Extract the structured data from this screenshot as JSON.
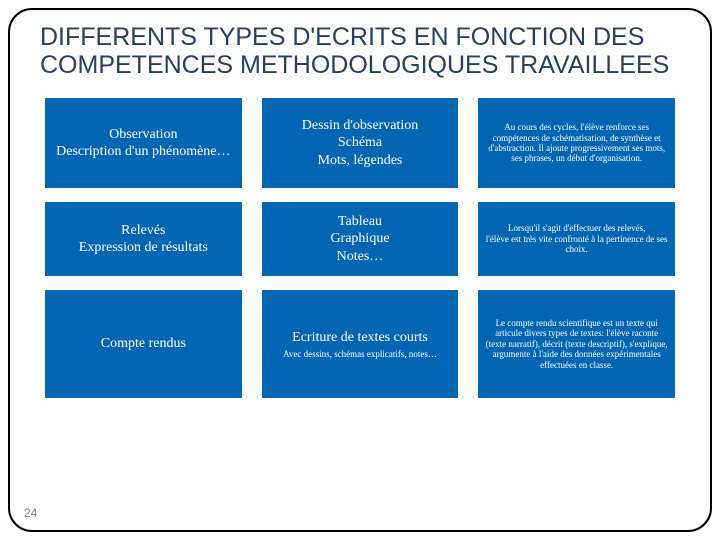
{
  "title": "DIFFERENTS TYPES D'ECRITS EN FONCTION DES COMPETENCES METHODOLOGIQUES TRAVAILLEES",
  "pageNumber": "24",
  "colors": {
    "cellBg": "#0066b3",
    "cellBorder": "#ffffff",
    "cellText": "#ffffff",
    "titleColor": "#254061",
    "borderColor": "#000000"
  },
  "grid": {
    "r1c1": "Observation\nDescription d'un phénomène…",
    "r1c2": "Dessin d'observation\nSchéma\nMots, légendes",
    "r1c3": "Au cours des cycles, l'élève renforce ses compétences de schématisation, de synthèse et d'abstraction. Il ajoute progressivement ses mots, ses phrases, un début d'organisation.",
    "r2c1": "Relevés\nExpression de résultats",
    "r2c2": "Tableau\nGraphique\nNotes…",
    "r2c3": "Lorsqu'il s'agit d'effectuer des relevés,\nl'élève est très vite confronté à la pertinence de ses choix.",
    "r3c1": "Compte rendus",
    "r3c2_main": "Ecriture de textes courts",
    "r3c2_sub": "Avec dessins, schémas explicatifs, notes…",
    "r3c3": "Le compte rendu scientifique est un texte qui articule divers types de textes: l'élève raconte (texte narratif), décrit (texte descriptif), s'explique, argumente à l'aide des données expérimentales effectuées en classe."
  }
}
